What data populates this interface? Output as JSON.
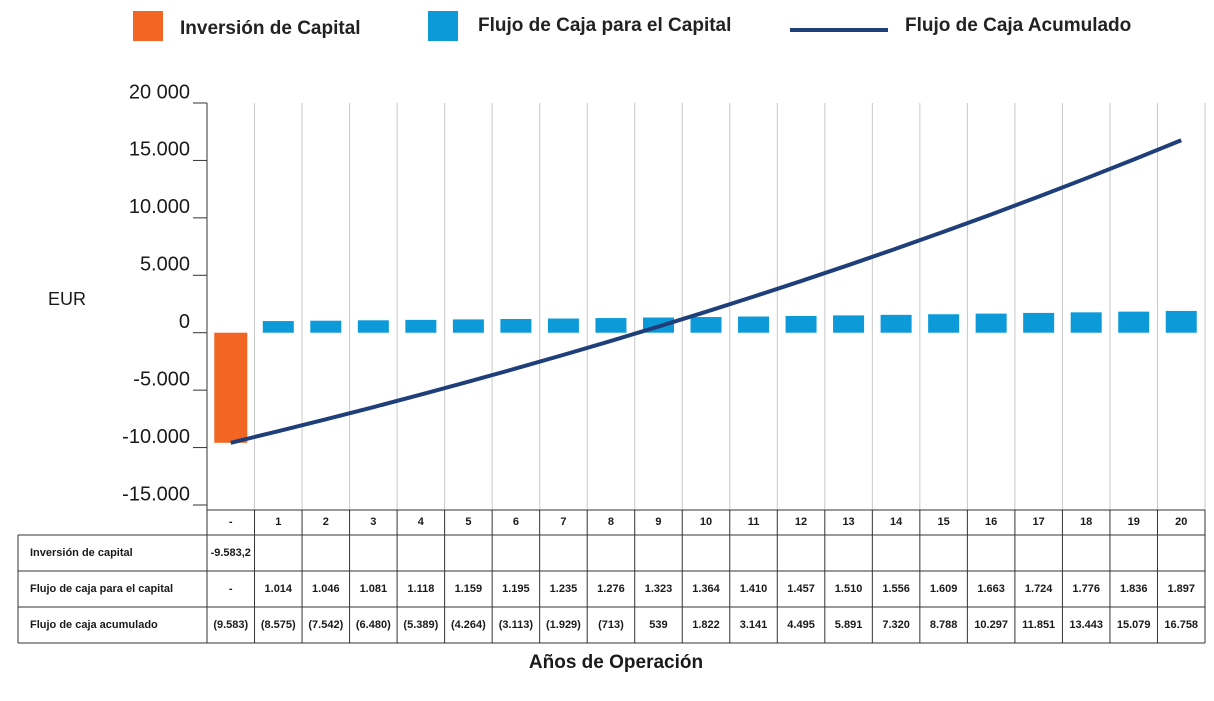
{
  "chart_data": {
    "type": "bar",
    "y_label": "EUR",
    "x_label": "Años de Operación",
    "categories": [
      "-",
      "1",
      "2",
      "3",
      "4",
      "5",
      "6",
      "7",
      "8",
      "9",
      "10",
      "11",
      "12",
      "13",
      "14",
      "15",
      "16",
      "17",
      "18",
      "19",
      "20"
    ],
    "ylim": [
      -15000,
      20000
    ],
    "yticks": [
      {
        "value": 20000,
        "label": "20 000"
      },
      {
        "value": 15000,
        "label": "15.000"
      },
      {
        "value": 10000,
        "label": "10.000"
      },
      {
        "value": 5000,
        "label": "5.000"
      },
      0,
      {
        "value": -5000,
        "label": "-5.000"
      },
      {
        "value": -10000,
        "label": "-10.000"
      },
      {
        "value": -15000,
        "label": "-15.000"
      }
    ],
    "series": [
      {
        "name": "Inversión de Capital",
        "table_label": "Inversión de capital",
        "type": "bar",
        "color": "#f26522",
        "values": [
          -9583.2,
          null,
          null,
          null,
          null,
          null,
          null,
          null,
          null,
          null,
          null,
          null,
          null,
          null,
          null,
          null,
          null,
          null,
          null,
          null,
          null
        ],
        "value_labels": [
          "-9.583,2",
          null,
          null,
          null,
          null,
          null,
          null,
          null,
          null,
          null,
          null,
          null,
          null,
          null,
          null,
          null,
          null,
          null,
          null,
          null,
          null
        ]
      },
      {
        "name": "Flujo de Caja para el Capital",
        "table_label": "Flujo de caja para el capital",
        "type": "bar",
        "color": "#0c9ad9",
        "values": [
          null,
          1014,
          1046,
          1081,
          1118,
          1159,
          1195,
          1235,
          1276,
          1323,
          1364,
          1410,
          1457,
          1510,
          1556,
          1609,
          1663,
          1724,
          1776,
          1836,
          1897
        ],
        "value_labels": [
          "-",
          "1.014",
          "1.046",
          "1.081",
          "1.118",
          "1.159",
          "1.195",
          "1.235",
          "1.276",
          "1.323",
          "1.364",
          "1.410",
          "1.457",
          "1.510",
          "1.556",
          "1.609",
          "1.663",
          "1.724",
          "1.776",
          "1.836",
          "1.897"
        ]
      },
      {
        "name": "Flujo de Caja Acumulado",
        "table_label": "Flujo de caja acumulado",
        "type": "line",
        "color": "#1f3f7a",
        "values": [
          -9583,
          -8575,
          -7542,
          -6480,
          -5389,
          -4264,
          -3113,
          -1929,
          -713,
          539,
          1822,
          3141,
          4495,
          5891,
          7320,
          8788,
          10297,
          11851,
          13443,
          15079,
          16758
        ],
        "value_labels": [
          "(9.583)",
          "(8.575)",
          "(7.542)",
          "(6.480)",
          "(5.389)",
          "(4.264)",
          "(3.113)",
          "(1.929)",
          "(713)",
          "539",
          "1.822",
          "3.141",
          "4.495",
          "5.891",
          "7.320",
          "8.788",
          "10.297",
          "11.851",
          "13.443",
          "15.079",
          "16.758"
        ]
      }
    ]
  }
}
